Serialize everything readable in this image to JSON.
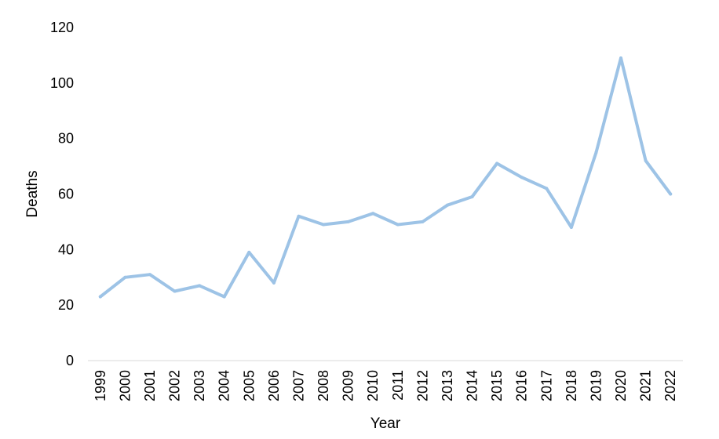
{
  "chart_data": {
    "type": "line",
    "title": "",
    "xlabel": "Year",
    "ylabel": "Deaths",
    "x": [
      "1999",
      "2000",
      "2001",
      "2002",
      "2003",
      "2004",
      "2005",
      "2006",
      "2007",
      "2008",
      "2009",
      "2010",
      "2011",
      "2012",
      "2013",
      "2014",
      "2015",
      "2016",
      "2017",
      "2018",
      "2019",
      "2020",
      "2021",
      "2022"
    ],
    "series": [
      {
        "values": [
          23,
          30,
          31,
          25,
          27,
          23,
          39,
          28,
          52,
          49,
          50,
          53,
          49,
          50,
          56,
          59,
          71,
          66,
          62,
          48,
          75,
          109,
          72,
          60
        ],
        "color": "#9dc3e6"
      }
    ],
    "ylim": [
      0,
      120
    ],
    "yticks": [
      0,
      20,
      40,
      60,
      80,
      100,
      120
    ],
    "grid": false,
    "legend": "none"
  }
}
